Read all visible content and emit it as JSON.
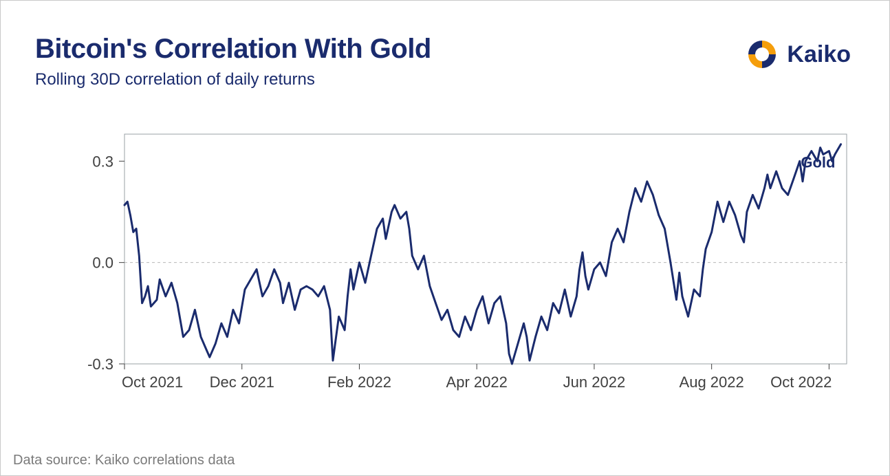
{
  "header": {
    "title": "Bitcoin's Correlation With Gold",
    "subtitle": "Rolling 30D correlation of daily returns"
  },
  "brand": {
    "name": "Kaiko",
    "mark_primary": "#f59e0b",
    "mark_secondary": "#1a2b6d"
  },
  "footer": {
    "text": "Data source: Kaiko correlations data"
  },
  "chart": {
    "type": "line",
    "background_color": "#ffffff",
    "plot_border_color": "#9aa0a6",
    "zero_line_color": "#b8b8b8",
    "label_color": "#404040",
    "line_color": "#1a2b6d",
    "line_width": 3,
    "label_fontsize": 22,
    "series_label": "Gold",
    "series_label_fontsize": 22,
    "ylim": [
      -0.3,
      0.38
    ],
    "yticks": [
      -0.3,
      0.0,
      0.3
    ],
    "ytick_labels": [
      "-0.3",
      "0.0",
      "0.3"
    ],
    "x_domain": [
      0,
      12.3
    ],
    "xticks": [
      0,
      2,
      4,
      6,
      8,
      10,
      12
    ],
    "xtick_labels": [
      "Oct 2021",
      "Dec 2021",
      "Feb 2022",
      "Apr 2022",
      "Jun 2022",
      "Aug 2022",
      "Oct 2022"
    ],
    "series": [
      [
        0.0,
        0.17
      ],
      [
        0.05,
        0.18
      ],
      [
        0.1,
        0.14
      ],
      [
        0.15,
        0.09
      ],
      [
        0.2,
        0.1
      ],
      [
        0.25,
        0.02
      ],
      [
        0.3,
        -0.12
      ],
      [
        0.35,
        -0.1
      ],
      [
        0.4,
        -0.07
      ],
      [
        0.45,
        -0.13
      ],
      [
        0.55,
        -0.11
      ],
      [
        0.6,
        -0.05
      ],
      [
        0.7,
        -0.1
      ],
      [
        0.8,
        -0.06
      ],
      [
        0.9,
        -0.12
      ],
      [
        1.0,
        -0.22
      ],
      [
        1.1,
        -0.2
      ],
      [
        1.2,
        -0.14
      ],
      [
        1.3,
        -0.22
      ],
      [
        1.4,
        -0.26
      ],
      [
        1.45,
        -0.28
      ],
      [
        1.55,
        -0.24
      ],
      [
        1.65,
        -0.18
      ],
      [
        1.75,
        -0.22
      ],
      [
        1.85,
        -0.14
      ],
      [
        1.95,
        -0.18
      ],
      [
        2.05,
        -0.08
      ],
      [
        2.15,
        -0.05
      ],
      [
        2.25,
        -0.02
      ],
      [
        2.35,
        -0.1
      ],
      [
        2.45,
        -0.07
      ],
      [
        2.55,
        -0.02
      ],
      [
        2.65,
        -0.06
      ],
      [
        2.7,
        -0.12
      ],
      [
        2.8,
        -0.06
      ],
      [
        2.9,
        -0.14
      ],
      [
        3.0,
        -0.08
      ],
      [
        3.1,
        -0.07
      ],
      [
        3.2,
        -0.08
      ],
      [
        3.3,
        -0.1
      ],
      [
        3.4,
        -0.07
      ],
      [
        3.5,
        -0.14
      ],
      [
        3.55,
        -0.29
      ],
      [
        3.65,
        -0.16
      ],
      [
        3.75,
        -0.2
      ],
      [
        3.8,
        -0.1
      ],
      [
        3.85,
        -0.02
      ],
      [
        3.9,
        -0.08
      ],
      [
        4.0,
        0.0
      ],
      [
        4.1,
        -0.06
      ],
      [
        4.2,
        0.02
      ],
      [
        4.3,
        0.1
      ],
      [
        4.4,
        0.13
      ],
      [
        4.45,
        0.07
      ],
      [
        4.55,
        0.15
      ],
      [
        4.6,
        0.17
      ],
      [
        4.7,
        0.13
      ],
      [
        4.8,
        0.15
      ],
      [
        4.85,
        0.1
      ],
      [
        4.9,
        0.02
      ],
      [
        5.0,
        -0.02
      ],
      [
        5.1,
        0.02
      ],
      [
        5.2,
        -0.07
      ],
      [
        5.3,
        -0.12
      ],
      [
        5.4,
        -0.17
      ],
      [
        5.5,
        -0.14
      ],
      [
        5.6,
        -0.2
      ],
      [
        5.7,
        -0.22
      ],
      [
        5.8,
        -0.16
      ],
      [
        5.9,
        -0.2
      ],
      [
        6.0,
        -0.14
      ],
      [
        6.1,
        -0.1
      ],
      [
        6.2,
        -0.18
      ],
      [
        6.3,
        -0.12
      ],
      [
        6.4,
        -0.1
      ],
      [
        6.5,
        -0.18
      ],
      [
        6.55,
        -0.27
      ],
      [
        6.6,
        -0.3
      ],
      [
        6.7,
        -0.24
      ],
      [
        6.8,
        -0.18
      ],
      [
        6.85,
        -0.22
      ],
      [
        6.9,
        -0.29
      ],
      [
        7.0,
        -0.22
      ],
      [
        7.1,
        -0.16
      ],
      [
        7.2,
        -0.2
      ],
      [
        7.3,
        -0.12
      ],
      [
        7.4,
        -0.15
      ],
      [
        7.5,
        -0.08
      ],
      [
        7.6,
        -0.16
      ],
      [
        7.7,
        -0.1
      ],
      [
        7.75,
        -0.02
      ],
      [
        7.8,
        0.03
      ],
      [
        7.85,
        -0.04
      ],
      [
        7.9,
        -0.08
      ],
      [
        8.0,
        -0.02
      ],
      [
        8.1,
        0.0
      ],
      [
        8.2,
        -0.04
      ],
      [
        8.3,
        0.06
      ],
      [
        8.4,
        0.1
      ],
      [
        8.5,
        0.06
      ],
      [
        8.6,
        0.15
      ],
      [
        8.7,
        0.22
      ],
      [
        8.8,
        0.18
      ],
      [
        8.9,
        0.24
      ],
      [
        9.0,
        0.2
      ],
      [
        9.1,
        0.14
      ],
      [
        9.2,
        0.1
      ],
      [
        9.3,
        0.0
      ],
      [
        9.4,
        -0.11
      ],
      [
        9.45,
        -0.03
      ],
      [
        9.5,
        -0.1
      ],
      [
        9.6,
        -0.16
      ],
      [
        9.7,
        -0.08
      ],
      [
        9.8,
        -0.1
      ],
      [
        9.85,
        -0.02
      ],
      [
        9.9,
        0.04
      ],
      [
        10.0,
        0.09
      ],
      [
        10.1,
        0.18
      ],
      [
        10.2,
        0.12
      ],
      [
        10.3,
        0.18
      ],
      [
        10.4,
        0.14
      ],
      [
        10.5,
        0.08
      ],
      [
        10.55,
        0.06
      ],
      [
        10.6,
        0.15
      ],
      [
        10.7,
        0.2
      ],
      [
        10.8,
        0.16
      ],
      [
        10.9,
        0.22
      ],
      [
        10.95,
        0.26
      ],
      [
        11.0,
        0.22
      ],
      [
        11.1,
        0.27
      ],
      [
        11.2,
        0.22
      ],
      [
        11.3,
        0.2
      ],
      [
        11.4,
        0.25
      ],
      [
        11.5,
        0.3
      ],
      [
        11.55,
        0.24
      ],
      [
        11.6,
        0.3
      ],
      [
        11.7,
        0.33
      ],
      [
        11.8,
        0.3
      ],
      [
        11.85,
        0.34
      ],
      [
        11.9,
        0.32
      ],
      [
        12.0,
        0.33
      ],
      [
        12.05,
        0.3
      ],
      [
        12.1,
        0.32
      ],
      [
        12.2,
        0.35
      ]
    ]
  }
}
